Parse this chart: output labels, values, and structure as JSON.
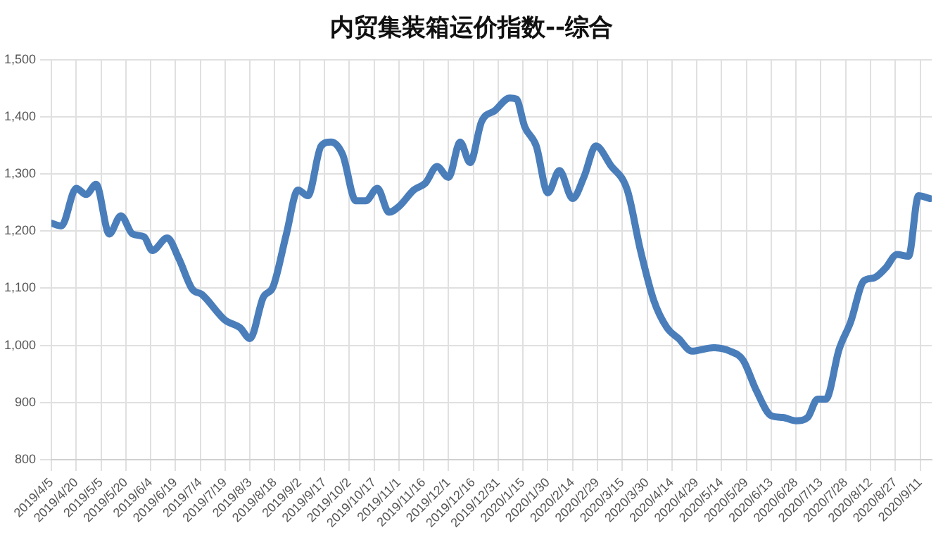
{
  "chart_data": {
    "type": "line",
    "title": "内贸集装箱运价指数--综合",
    "x": [
      "2019-04-05",
      "2019-04-11",
      "2019-04-20",
      "2019-04-26",
      "2019-05-02",
      "2019-05-10",
      "2019-05-17",
      "2019-05-24",
      "2019-05-31",
      "2019-06-05",
      "2019-06-14",
      "2019-06-21",
      "2019-06-29",
      "2019-07-05",
      "2019-07-19",
      "2019-07-28",
      "2019-08-03",
      "2019-08-11",
      "2019-08-17",
      "2019-08-25",
      "2019-09-01",
      "2019-09-07",
      "2019-09-15",
      "2019-09-21",
      "2019-09-28",
      "2019-10-06",
      "2019-10-12",
      "2019-10-19",
      "2019-10-26",
      "2019-11-01",
      "2019-11-10",
      "2019-11-17",
      "2019-11-24",
      "2019-12-01",
      "2019-12-08",
      "2019-12-14",
      "2019-12-21",
      "2019-12-29",
      "2020-01-07",
      "2020-01-11",
      "2020-01-16",
      "2020-01-23",
      "2020-01-30",
      "2020-02-06",
      "2020-02-14",
      "2020-02-21",
      "2020-02-28",
      "2020-03-08",
      "2020-03-18",
      "2020-03-26",
      "2020-04-03",
      "2020-04-11",
      "2020-04-18",
      "2020-04-26",
      "2020-05-09",
      "2020-05-19",
      "2020-05-27",
      "2020-06-04",
      "2020-06-13",
      "2020-06-20",
      "2020-06-28",
      "2020-07-05",
      "2020-07-11",
      "2020-07-16",
      "2020-07-24",
      "2020-07-31",
      "2020-08-08",
      "2020-08-14",
      "2020-08-21",
      "2020-08-28",
      "2020-09-04",
      "2020-09-10",
      "2020-09-17"
    ],
    "series": [
      {
        "color": "#4a7ebb",
        "values": [
          1214,
          1209,
          1275,
          1264,
          1282,
          1195,
          1227,
          1195,
          1190,
          1166,
          1188,
          1152,
          1099,
          1089,
          1044,
          1031,
          1012,
          1084,
          1103,
          1195,
          1272,
          1262,
          1349,
          1356,
          1334,
          1253,
          1253,
          1275,
          1233,
          1243,
          1272,
          1284,
          1313,
          1294,
          1356,
          1320,
          1392,
          1411,
          1433,
          1431,
          1383,
          1349,
          1267,
          1306,
          1257,
          1296,
          1349,
          1315,
          1272,
          1166,
          1079,
          1031,
          1012,
          990,
          996,
          990,
          974,
          921,
          877,
          874,
          868,
          874,
          906,
          906,
          993,
          1041,
          1113,
          1118,
          1135,
          1159,
          1156,
          1262,
          1257
        ]
      }
    ],
    "xlim": [
      "2019-04-05",
      "2020-09-18"
    ],
    "xticks": [
      {
        "value": "2019-04-05",
        "label": "2019/4/5"
      },
      {
        "value": "2019-04-20",
        "label": "2019/4/20"
      },
      {
        "value": "2019-05-05",
        "label": "2019/5/5"
      },
      {
        "value": "2019-05-20",
        "label": "2019/5/20"
      },
      {
        "value": "2019-06-04",
        "label": "2019/6/4"
      },
      {
        "value": "2019-06-19",
        "label": "2019/6/19"
      },
      {
        "value": "2019-07-04",
        "label": "2019/7/4"
      },
      {
        "value": "2019-07-19",
        "label": "2019/7/19"
      },
      {
        "value": "2019-08-03",
        "label": "2019/8/3"
      },
      {
        "value": "2019-08-18",
        "label": "2019/8/18"
      },
      {
        "value": "2019-09-02",
        "label": "2019/9/2"
      },
      {
        "value": "2019-09-17",
        "label": "2019/9/17"
      },
      {
        "value": "2019-10-02",
        "label": "2019/10/2"
      },
      {
        "value": "2019-10-17",
        "label": "2019/10/17"
      },
      {
        "value": "2019-11-01",
        "label": "2019/11/1"
      },
      {
        "value": "2019-11-16",
        "label": "2019/11/16"
      },
      {
        "value": "2019-12-01",
        "label": "2019/12/1"
      },
      {
        "value": "2019-12-16",
        "label": "2019/12/16"
      },
      {
        "value": "2019-12-31",
        "label": "2019/12/31"
      },
      {
        "value": "2020-01-15",
        "label": "2020/1/15"
      },
      {
        "value": "2020-01-30",
        "label": "2020/1/30"
      },
      {
        "value": "2020-02-14",
        "label": "2020/2/14"
      },
      {
        "value": "2020-02-29",
        "label": "2020/2/29"
      },
      {
        "value": "2020-03-15",
        "label": "2020/3/15"
      },
      {
        "value": "2020-03-30",
        "label": "2020/3/30"
      },
      {
        "value": "2020-04-14",
        "label": "2020/4/14"
      },
      {
        "value": "2020-04-29",
        "label": "2020/4/29"
      },
      {
        "value": "2020-05-14",
        "label": "2020/5/14"
      },
      {
        "value": "2020-05-29",
        "label": "2020/5/29"
      },
      {
        "value": "2020-06-13",
        "label": "2020/6/13"
      },
      {
        "value": "2020-06-28",
        "label": "2020/6/28"
      },
      {
        "value": "2020-07-13",
        "label": "2020/7/13"
      },
      {
        "value": "2020-07-28",
        "label": "2020/7/28"
      },
      {
        "value": "2020-08-12",
        "label": "2020/8/12"
      },
      {
        "value": "2020-08-27",
        "label": "2020/8/27"
      },
      {
        "value": "2020-09-11",
        "label": "2020/9/11"
      }
    ],
    "ylim": [
      800,
      1500
    ],
    "yticks": [
      800,
      900,
      {
        "value": 1000,
        "label": "1,000"
      },
      {
        "value": 1100,
        "label": "1,100"
      },
      {
        "value": 1200,
        "label": "1,200"
      },
      {
        "value": 1300,
        "label": "1,300"
      },
      {
        "value": 1400,
        "label": "1,400"
      },
      {
        "value": 1500,
        "label": "1,500"
      }
    ],
    "grid": true,
    "legend": false,
    "marker": "none",
    "line_style": "solid"
  }
}
